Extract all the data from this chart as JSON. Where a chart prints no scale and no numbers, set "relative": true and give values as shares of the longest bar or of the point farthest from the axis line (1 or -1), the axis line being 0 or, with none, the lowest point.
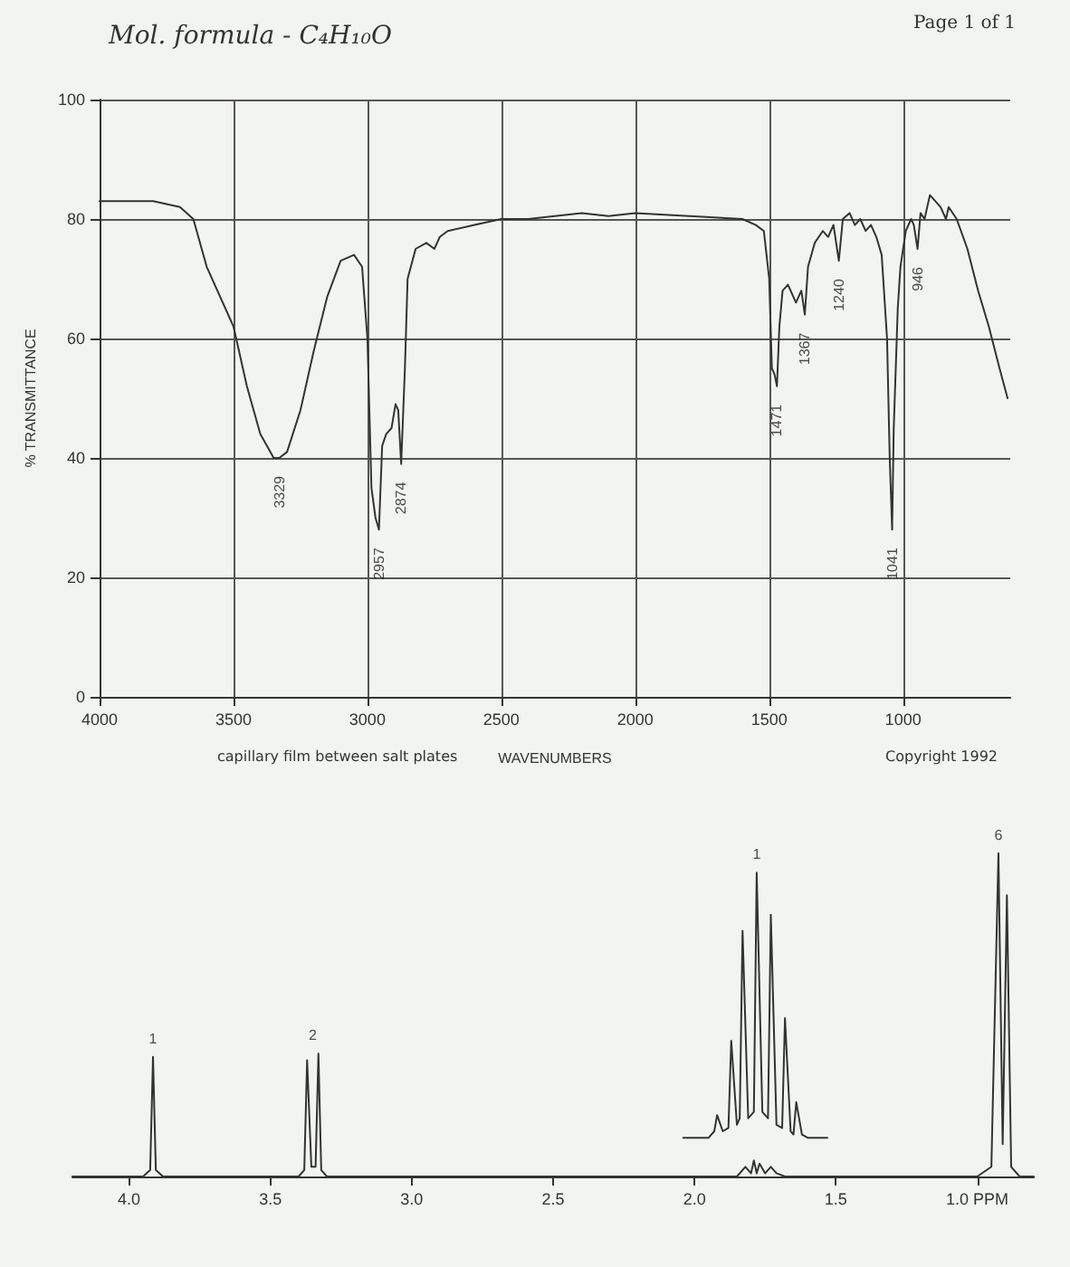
{
  "chart_data": [
    {
      "type": "line",
      "title": "Mol. formula - C₄H₁₀O",
      "xlabel": "WAVENUMBERS",
      "ylabel": "% TRANSMITTANCE",
      "xlim": [
        4000,
        600
      ],
      "xticks": [
        4000,
        3500,
        3000,
        2500,
        2000,
        1500,
        1000
      ],
      "ylim": [
        0,
        100
      ],
      "yticks": [
        0,
        20,
        40,
        60,
        80,
        100
      ],
      "grid": true,
      "marker": "none",
      "line_style": "solid",
      "series": [
        {
          "color": "#333333",
          "x": [
            4000,
            3800,
            3700,
            3650,
            3600,
            3500,
            3450,
            3400,
            3350,
            3329,
            3300,
            3250,
            3200,
            3150,
            3100,
            3050,
            3020,
            3000,
            2985,
            2970,
            2957,
            2945,
            2930,
            2910,
            2895,
            2885,
            2874,
            2860,
            2850,
            2820,
            2780,
            2750,
            2730,
            2700,
            2600,
            2500,
            2400,
            2200,
            2100,
            2000,
            1800,
            1600,
            1550,
            1520,
            1500,
            1490,
            1480,
            1471,
            1462,
            1450,
            1430,
            1400,
            1380,
            1367,
            1355,
            1330,
            1300,
            1280,
            1260,
            1240,
            1225,
            1200,
            1180,
            1160,
            1140,
            1120,
            1100,
            1080,
            1060,
            1050,
            1041,
            1035,
            1020,
            1010,
            990,
            970,
            960,
            946,
            935,
            920,
            900,
            880,
            860,
            840,
            830,
            800,
            760,
            720,
            680,
            640,
            610
          ],
          "values": [
            83,
            83,
            82,
            80,
            72,
            62,
            52,
            44,
            40,
            40,
            41,
            48,
            58,
            67,
            73,
            74,
            72,
            60,
            35,
            30,
            28,
            42,
            44,
            45,
            49,
            48,
            39,
            55,
            70,
            75,
            76,
            75,
            77,
            78,
            79,
            80,
            80,
            81,
            80.5,
            81,
            80.5,
            80,
            79,
            78,
            70,
            55,
            54,
            52,
            62,
            68,
            69,
            66,
            68,
            64,
            72,
            76,
            78,
            77,
            79,
            73,
            80,
            81,
            79,
            80,
            78,
            79,
            77,
            74,
            60,
            40,
            28,
            45,
            65,
            72,
            78,
            80,
            79,
            75,
            81,
            80,
            84,
            83,
            82,
            80,
            82,
            80,
            75,
            68,
            62,
            55,
            50
          ]
        }
      ],
      "annotations": [
        "Page 1 of 1",
        "capillary film between salt plates",
        "Copyright 1992",
        {
          "text": "3329",
          "x": 3329,
          "y": 40
        },
        {
          "text": "2957",
          "x": 2957,
          "y": 28
        },
        {
          "text": "2874",
          "x": 2874,
          "y": 39
        },
        {
          "text": "1471",
          "x": 1471,
          "y": 52
        },
        {
          "text": "1367",
          "x": 1367,
          "y": 64
        },
        {
          "text": "1240",
          "x": 1240,
          "y": 73
        },
        {
          "text": "1041",
          "x": 1041,
          "y": 28
        },
        {
          "text": "946",
          "x": 946,
          "y": 75
        }
      ]
    },
    {
      "type": "line",
      "relative": true,
      "xlim": [
        4.2,
        0.8
      ],
      "xticks": [
        {
          "value": 4,
          "label": "4.0"
        },
        {
          "value": 3.5,
          "label": "3.5"
        },
        {
          "value": 3,
          "label": "3.0"
        },
        {
          "value": 2.5,
          "label": "2.5"
        },
        {
          "value": 2,
          "label": "2.0"
        },
        {
          "value": 1.5,
          "label": "1.5"
        },
        {
          "value": 1,
          "label": "1.0 PPM"
        }
      ],
      "marker": "none",
      "line_style": "solid",
      "series": [
        {
          "color": "#333333",
          "x": [
            4.2,
            3.95,
            3.925,
            3.915,
            3.905,
            3.88,
            3.4,
            3.38,
            3.37,
            3.355,
            3.34,
            3.33,
            3.32,
            3.3,
            1.85,
            1.82,
            1.8,
            1.79,
            1.78,
            1.77,
            1.75,
            1.73,
            1.71,
            1.68,
            1.0,
            0.95,
            0.925,
            0.91,
            0.895,
            0.88,
            0.85,
            0.8
          ],
          "values": [
            0,
            0,
            0.02,
            0.37,
            0.02,
            0,
            0,
            0.02,
            0.36,
            0.03,
            0.03,
            0.38,
            0.02,
            0,
            0,
            0.03,
            0.01,
            0.05,
            0.01,
            0.04,
            0.01,
            0.03,
            0.01,
            0,
            0,
            0.03,
            1,
            0.1,
            0.87,
            0.03,
            0,
            0
          ]
        },
        {
          "color": "#333333",
          "x": [
            2.04,
            1.95,
            1.93,
            1.92,
            1.9,
            1.88,
            1.87,
            1.85,
            1.84,
            1.83,
            1.81,
            1.79,
            1.78,
            1.76,
            1.74,
            1.73,
            1.71,
            1.69,
            1.68,
            1.66,
            1.65,
            1.64,
            1.62,
            1.6,
            1.53
          ],
          "values": [
            0.12,
            0.12,
            0.14,
            0.19,
            0.14,
            0.15,
            0.42,
            0.16,
            0.18,
            0.76,
            0.18,
            0.2,
            0.94,
            0.2,
            0.18,
            0.81,
            0.16,
            0.15,
            0.49,
            0.14,
            0.13,
            0.23,
            0.13,
            0.12,
            0.12
          ]
        }
      ],
      "annotations": [
        {
          "text": "1",
          "x": 3.915,
          "y": 0.37
        },
        {
          "text": "2",
          "x": 3.35,
          "y": 0.38
        },
        {
          "text": "1",
          "x": 1.78,
          "y": 0.94
        },
        {
          "text": "6",
          "x": 0.925,
          "y": 1
        }
      ]
    }
  ]
}
